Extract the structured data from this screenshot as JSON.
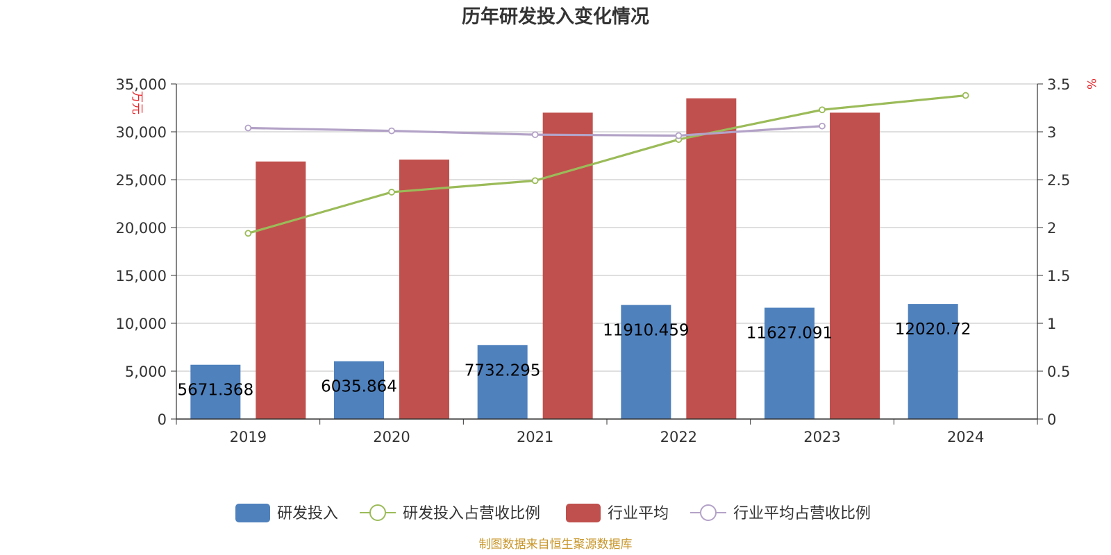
{
  "chart_data": {
    "type": "bar",
    "title": "历年研发投入变化情况",
    "categories": [
      "2019",
      "2020",
      "2021",
      "2022",
      "2023",
      "2024"
    ],
    "y_left": {
      "unit": "万元",
      "ylim": [
        0,
        35000
      ],
      "ticks": [
        "0",
        "5,000",
        "10,000",
        "15,000",
        "20,000",
        "25,000",
        "30,000",
        "35,000"
      ],
      "tick_values": [
        0,
        5000,
        10000,
        15000,
        20000,
        25000,
        30000,
        35000
      ]
    },
    "y_right": {
      "unit": "%",
      "ylim": [
        0,
        3.5
      ],
      "ticks": [
        "0",
        "0.5",
        "1",
        "1.5",
        "2",
        "2.5",
        "3",
        "3.5"
      ],
      "tick_values": [
        0,
        0.5,
        1,
        1.5,
        2,
        2.5,
        3,
        3.5
      ]
    },
    "grid": true,
    "legend_position": "bottom",
    "series": [
      {
        "name": "研发投入",
        "type": "bar",
        "axis": "left",
        "color": "#4f81bd",
        "values": [
          5671.368,
          6035.864,
          7732.295,
          11910.459,
          11627.091,
          12020.72
        ],
        "labels": [
          "5671.368",
          "6035.864",
          "7732.295",
          "11910.459",
          "11627.091",
          "12020.72"
        ]
      },
      {
        "name": "研发投入占营收比例",
        "type": "line",
        "axis": "right",
        "color": "#9bbb59",
        "values": [
          1.94,
          2.37,
          2.49,
          2.92,
          3.23,
          3.38
        ]
      },
      {
        "name": "行业平均",
        "type": "bar",
        "axis": "left",
        "color": "#c0504d",
        "values": [
          26900,
          27100,
          32000,
          33500,
          32000,
          null
        ]
      },
      {
        "name": "行业平均占营收比例",
        "type": "line",
        "axis": "right",
        "color": "#b3a2c7",
        "values": [
          3.04,
          3.01,
          2.97,
          2.96,
          3.06,
          null
        ]
      }
    ],
    "source": "制图数据来自恒生聚源数据库"
  }
}
